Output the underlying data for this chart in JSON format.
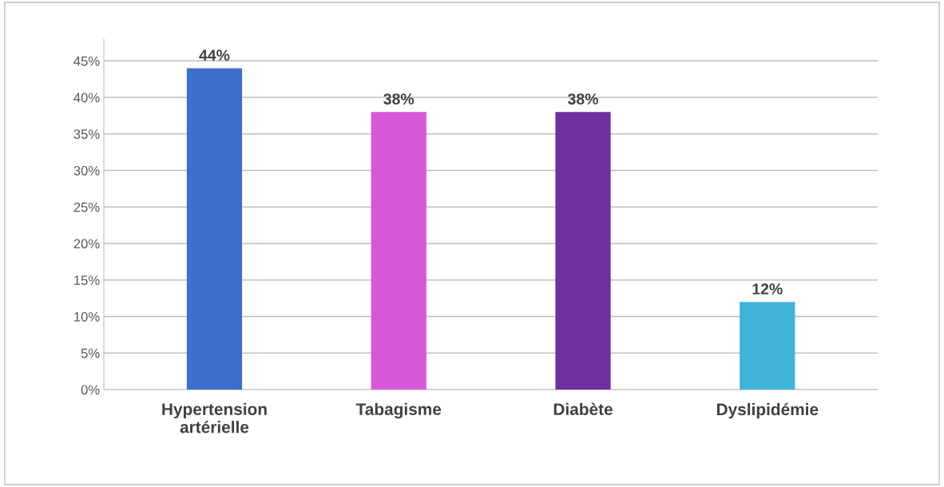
{
  "chart_data": {
    "type": "bar",
    "categories": [
      "Hypertension\nartérielle",
      "Tabagisme",
      "Diabète",
      "Dyslipidémie"
    ],
    "values": [
      44,
      38,
      38,
      12
    ],
    "colors": [
      "#3f6fcc",
      "#d65ad8",
      "#7030a0",
      "#3fb3d8"
    ],
    "value_labels": [
      "44%",
      "38%",
      "38%",
      "12%"
    ],
    "ylim": [
      0,
      48
    ],
    "yticks": [
      {
        "value": 0,
        "label": "0%"
      },
      {
        "value": 5,
        "label": "5%"
      },
      {
        "value": 10,
        "label": "10%"
      },
      {
        "value": 15,
        "label": "15%"
      },
      {
        "value": 20,
        "label": "20%"
      },
      {
        "value": 25,
        "label": "25%"
      },
      {
        "value": 30,
        "label": "30%"
      },
      {
        "value": 35,
        "label": "35%"
      },
      {
        "value": 40,
        "label": "40%"
      },
      {
        "value": 45,
        "label": "45%"
      }
    ],
    "grid": "y"
  }
}
